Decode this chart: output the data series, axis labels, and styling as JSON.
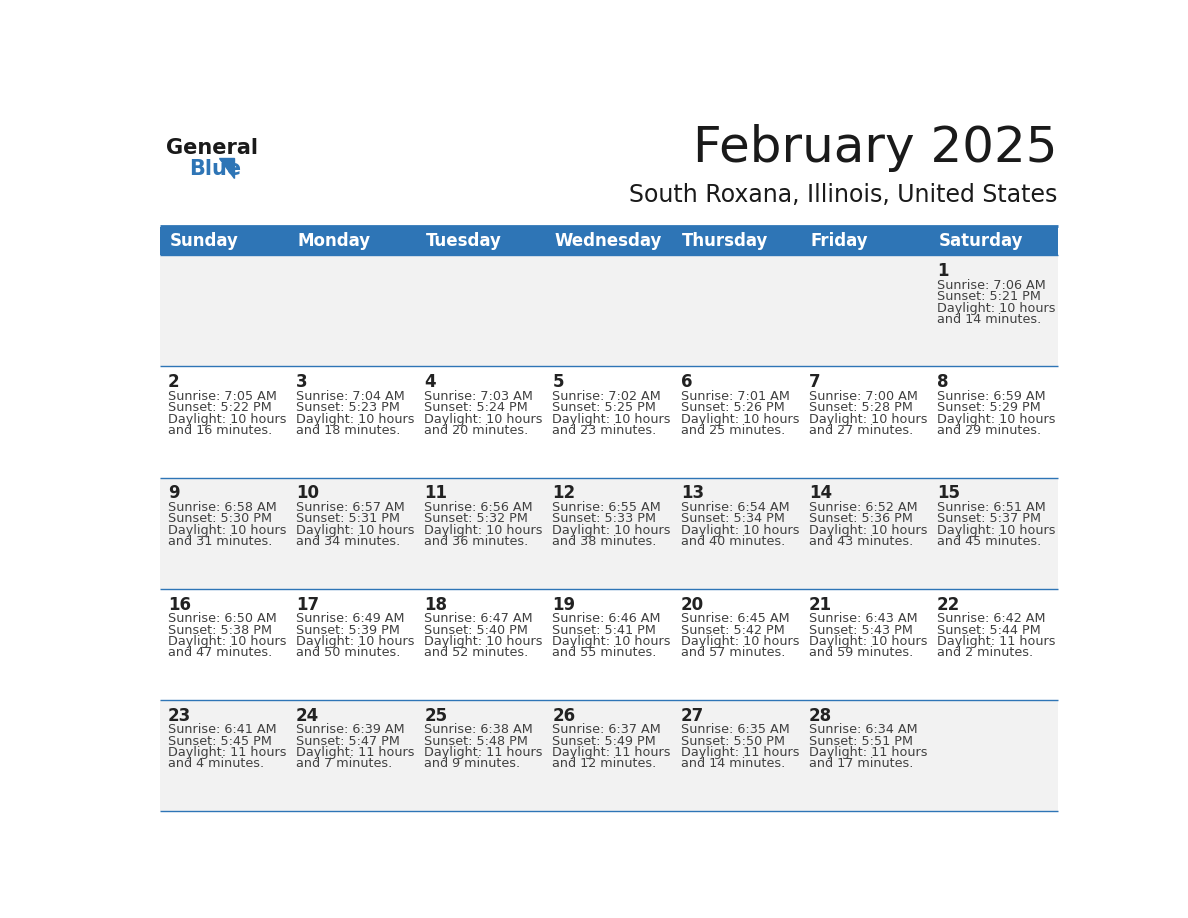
{
  "title": "February 2025",
  "subtitle": "South Roxana, Illinois, United States",
  "header_bg": "#2E75B6",
  "header_text_color": "#FFFFFF",
  "day_names": [
    "Sunday",
    "Monday",
    "Tuesday",
    "Wednesday",
    "Thursday",
    "Friday",
    "Saturday"
  ],
  "row_bg_odd": "#F2F2F2",
  "row_bg_even": "#FFFFFF",
  "cell_text_color": "#404040",
  "date_text_color": "#222222",
  "separator_color": "#2E75B6",
  "logo_general_color": "#1a1a1a",
  "logo_blue_color": "#2E75B6",
  "calendar": [
    [
      null,
      null,
      null,
      null,
      null,
      null,
      {
        "day": 1,
        "sunrise": "7:06 AM",
        "sunset": "5:21 PM",
        "daylight": "10 hours and 14 minutes."
      }
    ],
    [
      {
        "day": 2,
        "sunrise": "7:05 AM",
        "sunset": "5:22 PM",
        "daylight": "10 hours and 16 minutes."
      },
      {
        "day": 3,
        "sunrise": "7:04 AM",
        "sunset": "5:23 PM",
        "daylight": "10 hours and 18 minutes."
      },
      {
        "day": 4,
        "sunrise": "7:03 AM",
        "sunset": "5:24 PM",
        "daylight": "10 hours and 20 minutes."
      },
      {
        "day": 5,
        "sunrise": "7:02 AM",
        "sunset": "5:25 PM",
        "daylight": "10 hours and 23 minutes."
      },
      {
        "day": 6,
        "sunrise": "7:01 AM",
        "sunset": "5:26 PM",
        "daylight": "10 hours and 25 minutes."
      },
      {
        "day": 7,
        "sunrise": "7:00 AM",
        "sunset": "5:28 PM",
        "daylight": "10 hours and 27 minutes."
      },
      {
        "day": 8,
        "sunrise": "6:59 AM",
        "sunset": "5:29 PM",
        "daylight": "10 hours and 29 minutes."
      }
    ],
    [
      {
        "day": 9,
        "sunrise": "6:58 AM",
        "sunset": "5:30 PM",
        "daylight": "10 hours and 31 minutes."
      },
      {
        "day": 10,
        "sunrise": "6:57 AM",
        "sunset": "5:31 PM",
        "daylight": "10 hours and 34 minutes."
      },
      {
        "day": 11,
        "sunrise": "6:56 AM",
        "sunset": "5:32 PM",
        "daylight": "10 hours and 36 minutes."
      },
      {
        "day": 12,
        "sunrise": "6:55 AM",
        "sunset": "5:33 PM",
        "daylight": "10 hours and 38 minutes."
      },
      {
        "day": 13,
        "sunrise": "6:54 AM",
        "sunset": "5:34 PM",
        "daylight": "10 hours and 40 minutes."
      },
      {
        "day": 14,
        "sunrise": "6:52 AM",
        "sunset": "5:36 PM",
        "daylight": "10 hours and 43 minutes."
      },
      {
        "day": 15,
        "sunrise": "6:51 AM",
        "sunset": "5:37 PM",
        "daylight": "10 hours and 45 minutes."
      }
    ],
    [
      {
        "day": 16,
        "sunrise": "6:50 AM",
        "sunset": "5:38 PM",
        "daylight": "10 hours and 47 minutes."
      },
      {
        "day": 17,
        "sunrise": "6:49 AM",
        "sunset": "5:39 PM",
        "daylight": "10 hours and 50 minutes."
      },
      {
        "day": 18,
        "sunrise": "6:47 AM",
        "sunset": "5:40 PM",
        "daylight": "10 hours and 52 minutes."
      },
      {
        "day": 19,
        "sunrise": "6:46 AM",
        "sunset": "5:41 PM",
        "daylight": "10 hours and 55 minutes."
      },
      {
        "day": 20,
        "sunrise": "6:45 AM",
        "sunset": "5:42 PM",
        "daylight": "10 hours and 57 minutes."
      },
      {
        "day": 21,
        "sunrise": "6:43 AM",
        "sunset": "5:43 PM",
        "daylight": "10 hours and 59 minutes."
      },
      {
        "day": 22,
        "sunrise": "6:42 AM",
        "sunset": "5:44 PM",
        "daylight": "11 hours and 2 minutes."
      }
    ],
    [
      {
        "day": 23,
        "sunrise": "6:41 AM",
        "sunset": "5:45 PM",
        "daylight": "11 hours and 4 minutes."
      },
      {
        "day": 24,
        "sunrise": "6:39 AM",
        "sunset": "5:47 PM",
        "daylight": "11 hours and 7 minutes."
      },
      {
        "day": 25,
        "sunrise": "6:38 AM",
        "sunset": "5:48 PM",
        "daylight": "11 hours and 9 minutes."
      },
      {
        "day": 26,
        "sunrise": "6:37 AM",
        "sunset": "5:49 PM",
        "daylight": "11 hours and 12 minutes."
      },
      {
        "day": 27,
        "sunrise": "6:35 AM",
        "sunset": "5:50 PM",
        "daylight": "11 hours and 14 minutes."
      },
      {
        "day": 28,
        "sunrise": "6:34 AM",
        "sunset": "5:51 PM",
        "daylight": "11 hours and 17 minutes."
      },
      null
    ]
  ],
  "title_fontsize": 36,
  "subtitle_fontsize": 17,
  "header_fontsize": 12,
  "day_num_fontsize": 12,
  "cell_info_fontsize": 9.2
}
